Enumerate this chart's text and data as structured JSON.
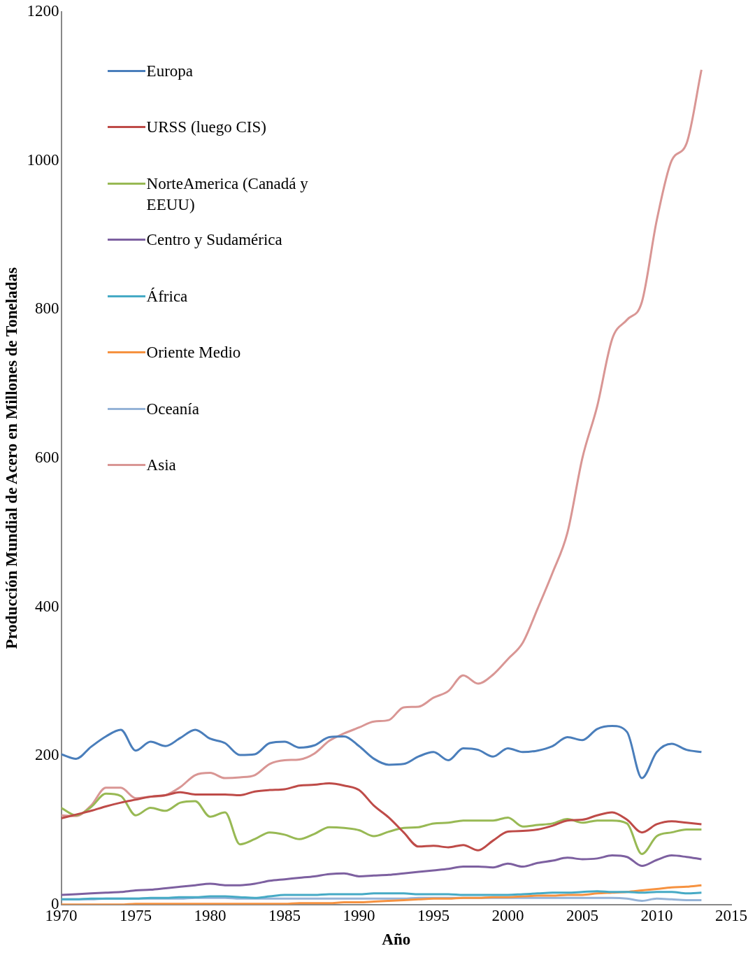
{
  "chart_data": {
    "type": "line",
    "xlabel": "Año",
    "ylabel": "Producción Mundial de Acero en Millones de Toneladas",
    "x": [
      1970,
      1971,
      1972,
      1973,
      1974,
      1975,
      1976,
      1977,
      1978,
      1979,
      1980,
      1981,
      1982,
      1983,
      1984,
      1985,
      1986,
      1987,
      1988,
      1989,
      1990,
      1991,
      1992,
      1993,
      1994,
      1995,
      1996,
      1997,
      1998,
      1999,
      2000,
      2001,
      2002,
      2003,
      2004,
      2005,
      2006,
      2007,
      2008,
      2009,
      2010,
      2011,
      2012,
      2013
    ],
    "xlim": [
      1970,
      2015
    ],
    "xticks": [
      1970,
      1975,
      1980,
      1985,
      1990,
      1995,
      2000,
      2005,
      2010,
      2015
    ],
    "ylim": [
      0,
      1200
    ],
    "yticks": [
      0,
      200,
      400,
      600,
      800,
      1000,
      1200
    ],
    "legend": "top left",
    "marker": "none",
    "line_style": "solid",
    "series": [
      {
        "name": "Europa",
        "color": "#4a7ebb",
        "values": [
          202,
          196,
          212,
          226,
          235,
          207,
          219,
          213,
          224,
          235,
          223,
          217,
          201,
          202,
          217,
          219,
          211,
          214,
          225,
          226,
          213,
          196,
          188,
          189,
          199,
          205,
          194,
          210,
          208,
          199,
          210,
          205,
          207,
          213,
          225,
          221,
          236,
          240,
          232,
          170,
          205,
          216,
          208,
          205
        ]
      },
      {
        "name": "URSS (luego CIS)",
        "color": "#be4b48",
        "values": [
          116,
          121,
          126,
          132,
          137,
          141,
          145,
          147,
          151,
          148,
          148,
          148,
          147,
          152,
          154,
          155,
          160,
          161,
          163,
          160,
          154,
          133,
          117,
          97,
          78,
          79,
          77,
          80,
          73,
          86,
          98,
          99,
          101,
          106,
          113,
          114,
          120,
          124,
          114,
          97,
          108,
          112,
          110,
          108
        ]
      },
      {
        "name": "NorteAmerica (Canadá y EEUU)",
        "color": "#98b954",
        "values": [
          130,
          120,
          131,
          149,
          146,
          120,
          130,
          126,
          137,
          139,
          118,
          124,
          81,
          88,
          97,
          94,
          88,
          95,
          104,
          103,
          100,
          92,
          98,
          103,
          104,
          109,
          110,
          113,
          113,
          113,
          117,
          105,
          107,
          109,
          115,
          110,
          113,
          113,
          109,
          68,
          92,
          97,
          101,
          101
        ]
      },
      {
        "name": "Centro y Sudamérica",
        "color": "#7d60a0",
        "values": [
          13,
          14,
          15,
          16,
          17,
          19,
          20,
          22,
          24,
          26,
          28,
          26,
          26,
          28,
          32,
          34,
          36,
          38,
          41,
          42,
          38,
          39,
          40,
          42,
          44,
          46,
          48,
          51,
          51,
          50,
          55,
          51,
          56,
          59,
          63,
          61,
          62,
          66,
          64,
          52,
          60,
          66,
          64,
          61
        ]
      },
      {
        "name": "África",
        "color": "#46aac5",
        "values": [
          7,
          7,
          8,
          8,
          8,
          8,
          9,
          9,
          10,
          10,
          11,
          11,
          10,
          9,
          11,
          13,
          13,
          13,
          14,
          14,
          14,
          15,
          15,
          15,
          14,
          14,
          14,
          13,
          13,
          13,
          13,
          14,
          15,
          16,
          16,
          17,
          18,
          17,
          17,
          16,
          17,
          17,
          15,
          16
        ]
      },
      {
        "name": "Oriente Medio",
        "color": "#f69240",
        "values": [
          0,
          0,
          0,
          0,
          0,
          1,
          1,
          1,
          1,
          1,
          1,
          1,
          1,
          1,
          1,
          1,
          2,
          2,
          2,
          3,
          3,
          4,
          5,
          6,
          7,
          8,
          8,
          9,
          9,
          10,
          10,
          11,
          12,
          12,
          13,
          13,
          15,
          16,
          17,
          19,
          21,
          23,
          24,
          26
        ]
      },
      {
        "name": "Oceanía",
        "color": "#95b3d7",
        "values": [
          7,
          7,
          7,
          8,
          8,
          8,
          8,
          8,
          8,
          9,
          9,
          9,
          8,
          8,
          8,
          8,
          8,
          8,
          8,
          8,
          8,
          8,
          8,
          8,
          9,
          9,
          9,
          9,
          9,
          9,
          9,
          9,
          9,
          9,
          9,
          9,
          9,
          9,
          8,
          5,
          8,
          7,
          6,
          6
        ]
      },
      {
        "name": "Asia",
        "color": "#d99694",
        "values": [
          120,
          119,
          133,
          157,
          157,
          143,
          145,
          147,
          158,
          174,
          177,
          170,
          171,
          174,
          189,
          194,
          195,
          203,
          220,
          230,
          238,
          246,
          248,
          265,
          266,
          278,
          287,
          308,
          297,
          309,
          330,
          352,
          398,
          446,
          500,
          600,
          670,
          760,
          786,
          810,
          920,
          1000,
          1023,
          1122
        ]
      }
    ]
  }
}
